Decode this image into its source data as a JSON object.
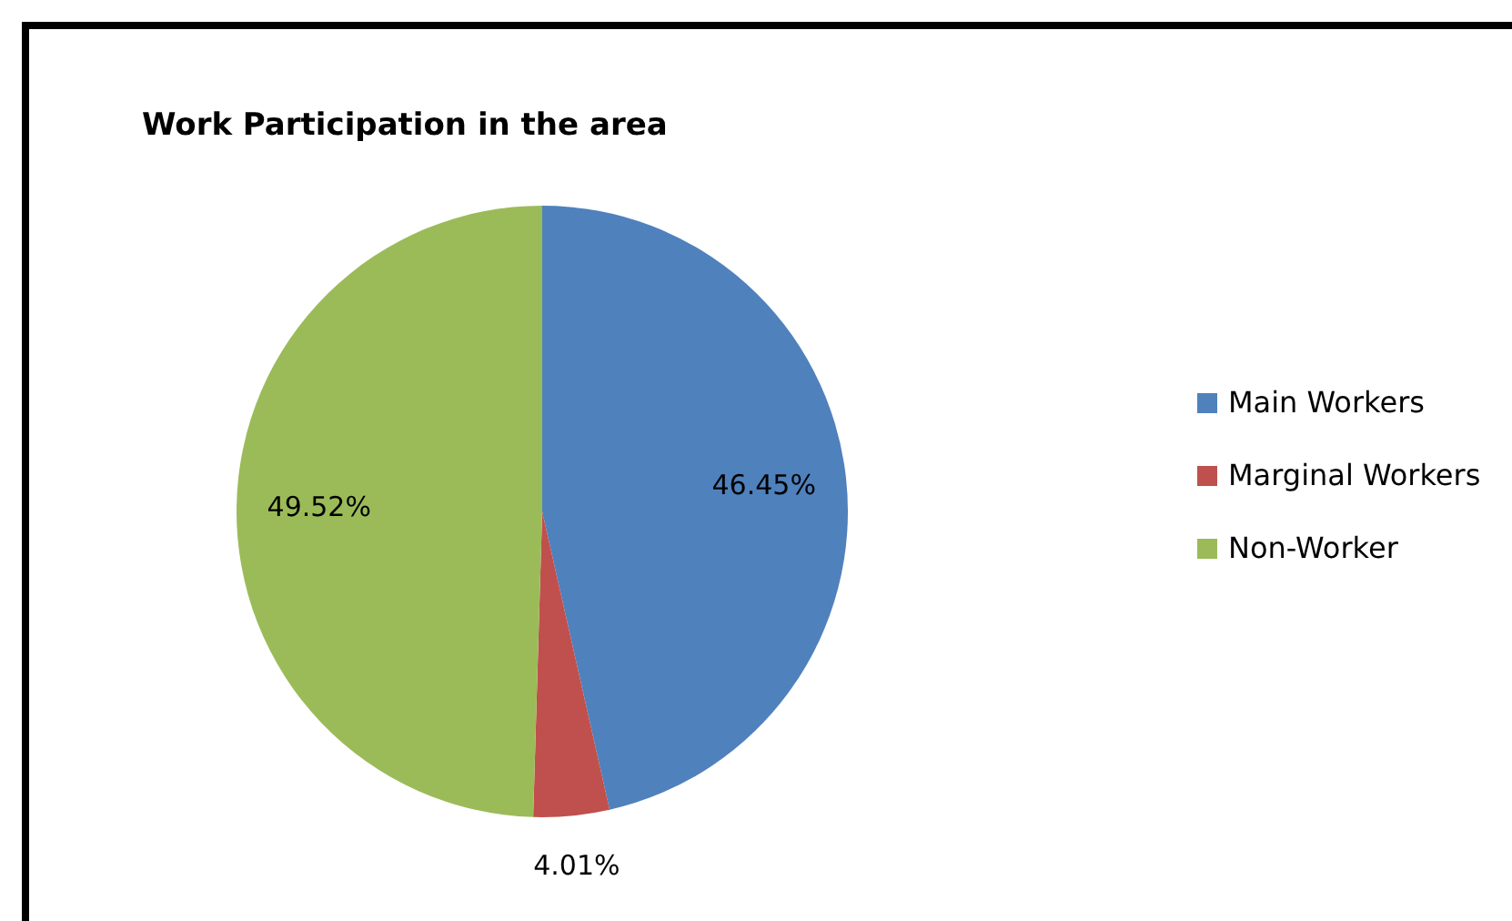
{
  "chart_data": {
    "type": "pie",
    "title": "Work Participation in the area",
    "categories": [
      "Main Workers",
      "Marginal Workers",
      "Non-Worker"
    ],
    "values": [
      46.45,
      4.01,
      49.52
    ],
    "colors": [
      "#4f81bd",
      "#c0504d",
      "#9bbb59"
    ],
    "value_labels": [
      "46.45%",
      "4.01%",
      "49.52%"
    ],
    "legend": "right"
  }
}
